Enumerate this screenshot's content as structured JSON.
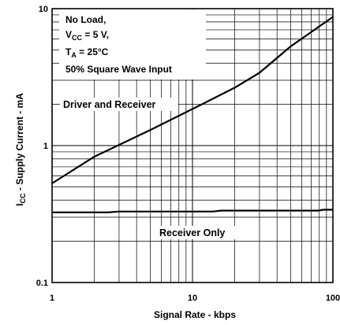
{
  "chart_data": {
    "type": "line",
    "x_scale": "log",
    "y_scale": "log",
    "xlim": [
      1,
      100
    ],
    "ylim": [
      0.1,
      10
    ],
    "xlabel": "Signal Rate - kbps",
    "ylabel": {
      "prefix": "I",
      "subscript": "CC",
      "suffix": " - Supply Current - mA"
    },
    "x_ticks": [
      {
        "value": 1,
        "label": "1"
      },
      {
        "value": 10,
        "label": "10"
      },
      {
        "value": 100,
        "label": "100"
      }
    ],
    "y_ticks": [
      {
        "value": 0.1,
        "label": "0.1"
      },
      {
        "value": 1,
        "label": "1"
      },
      {
        "value": 10,
        "label": "10"
      }
    ],
    "grid": true,
    "conditions": {
      "line1": "No Load,",
      "line2": {
        "prefix": "V",
        "subscript": "CC",
        "suffix": " = 5 V,"
      },
      "line3": {
        "prefix": "T",
        "subscript": "A",
        "suffix": " = 25°C"
      },
      "line4": "50% Square Wave Input"
    },
    "series": [
      {
        "name": "Driver and Receiver",
        "points": [
          [
            1,
            0.53
          ],
          [
            2,
            0.83
          ],
          [
            5,
            1.3
          ],
          [
            10,
            1.85
          ],
          [
            14,
            2.2
          ],
          [
            20,
            2.65
          ],
          [
            30,
            3.4
          ],
          [
            50,
            5.3
          ],
          [
            100,
            8.7
          ]
        ]
      },
      {
        "name": "Receiver Only",
        "points": [
          [
            1,
            0.325
          ],
          [
            2.5,
            0.325
          ],
          [
            3,
            0.33
          ],
          [
            14,
            0.33
          ],
          [
            16,
            0.335
          ],
          [
            80,
            0.335
          ],
          [
            85,
            0.34
          ],
          [
            100,
            0.34
          ]
        ]
      }
    ]
  }
}
